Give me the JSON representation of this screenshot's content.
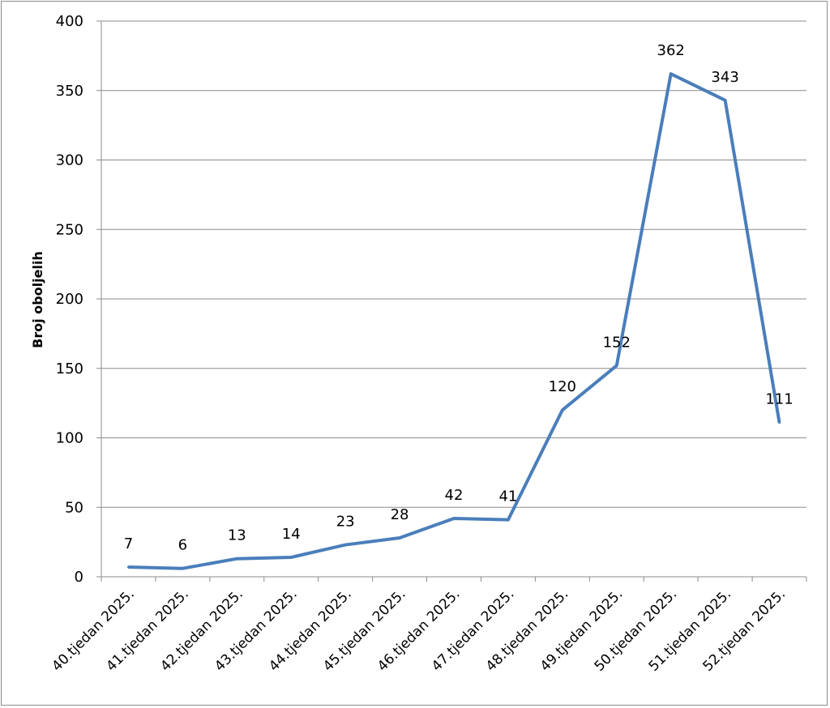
{
  "chart_data": {
    "type": "line",
    "title": "",
    "xlabel": "",
    "ylabel": "Broj oboljelih",
    "ylim": [
      0,
      400
    ],
    "yticks": [
      0,
      50,
      100,
      150,
      200,
      250,
      300,
      350,
      400
    ],
    "grid": true,
    "legend": "none",
    "categories": [
      "40.tjedan 2025.",
      "41.tjedan 2025.",
      "42.tjedan 2025.",
      "43.tjedan 2025.",
      "44.tjedan 2025.",
      "45.tjedan 2025.",
      "46.tjedan 2025.",
      "47.tjedan 2025.",
      "48.tjedan 2025.",
      "49.tjedan 2025.",
      "50.tjedan 2025.",
      "51.tjedan 2025.",
      "52.tjedan 2025."
    ],
    "series": [
      {
        "values": [
          7,
          6,
          13,
          14,
          23,
          28,
          42,
          41,
          120,
          152,
          362,
          343,
          111
        ],
        "color": "#4a7ebb"
      }
    ],
    "colors": {
      "line": "#4a7ebb",
      "grid": "#8c8c8c",
      "axis": "#8c8c8c"
    }
  }
}
